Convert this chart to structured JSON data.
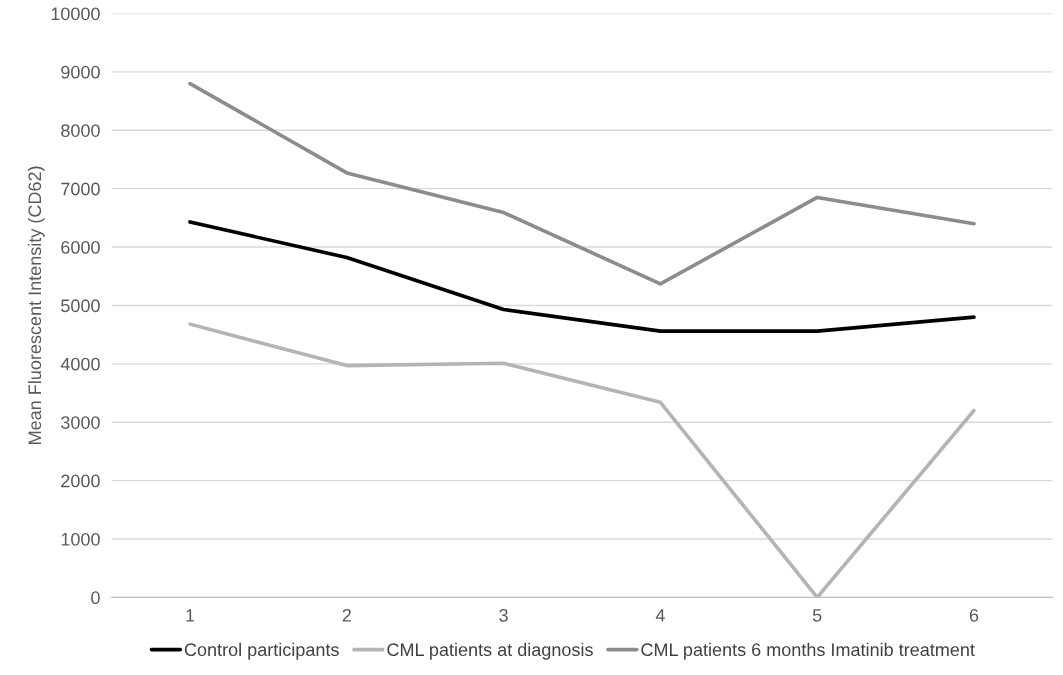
{
  "chart_data": {
    "type": "line",
    "ylabel": "Mean Fluorescent Intensity (CD62)",
    "categories": [
      "1",
      "2",
      "3",
      "4",
      "5",
      "6"
    ],
    "series": [
      {
        "name": "Control participants",
        "color": "#000000",
        "values": [
          6430,
          5820,
          4930,
          4560,
          4560,
          4800
        ]
      },
      {
        "name": "CML patients at diagnosis",
        "color": "#b4b4b4",
        "values": [
          4680,
          3970,
          4010,
          3340,
          0,
          3200
        ]
      },
      {
        "name": "CML patients 6 months Imatinib treatment",
        "color": "#8c8c8c",
        "values": [
          8800,
          7270,
          6590,
          5370,
          6850,
          6400
        ]
      }
    ],
    "ylim": [
      0,
      10000
    ],
    "yticks": [
      0,
      1000,
      2000,
      3000,
      4000,
      5000,
      6000,
      7000,
      8000,
      9000,
      10000
    ],
    "grid": "y",
    "legend": "bottom",
    "marker": "none",
    "line_style": "solid"
  }
}
